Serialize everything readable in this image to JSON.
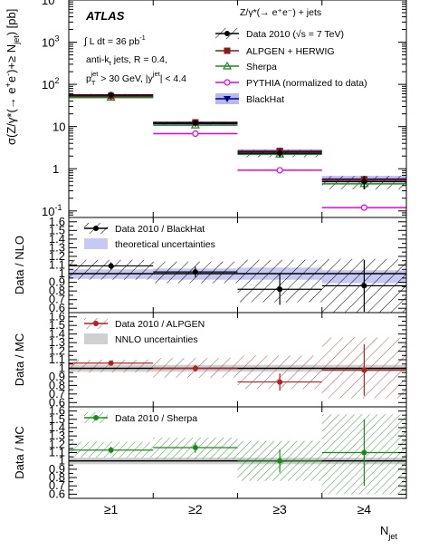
{
  "chart_data": {
    "type": "line",
    "xlabel": "N",
    "xlabel_sub": "jet",
    "categories": [
      "≥1",
      "≥2",
      "≥3",
      "≥4"
    ],
    "main": {
      "ylabel_a": "σ(Z/γ*(→ e",
      "ylabel_b": "e",
      "ylabel_c": ")+≥ N",
      "ylabel_sub": "jet",
      "ylabel_d": ") [pb]",
      "scale": "log",
      "ylim": [
        0.07,
        10000
      ],
      "yticks": [
        {
          "base": "10",
          "exp": "-1",
          "v": 0.1
        },
        {
          "base": "1",
          "exp": "",
          "v": 1
        },
        {
          "base": "10",
          "exp": "",
          "v": 10
        },
        {
          "base": "10",
          "exp": "2",
          "v": 100
        },
        {
          "base": "10",
          "exp": "3",
          "v": 1000
        },
        {
          "base": "10",
          "exp": "4",
          "v": 10000
        }
      ],
      "atlas": "ATLAS",
      "lumi_a": "∫ L dt = 36 pb",
      "lumi_exp": "-1",
      "line2": "anti-k",
      "line2_sub": "t",
      "line2_rest": " jets, R = 0.4,",
      "line3_a": "p",
      "line3_sub": "T",
      "line3_sup": "jet",
      "line3_b": " > 30 GeV, |y",
      "line3_sup2": "jet",
      "line3_c": "| < 4.4",
      "legend_title": "Z/γ*(→ e⁺e⁻) + jets",
      "series": [
        {
          "name": "Data 2010 (√s = 7 TeV)",
          "color": "#000000",
          "marker": "dot",
          "values": [
            56,
            12.2,
            2.35,
            0.5
          ],
          "err": [
            0.06,
            0.08,
            0.2,
            0.35
          ]
        },
        {
          "name": "ALPGEN + HERWIG",
          "color": "#8b1a1a",
          "marker": "square",
          "values": [
            53,
            12.6,
            2.65,
            0.55
          ]
        },
        {
          "name": "Sherpa",
          "color": "#1a8a1a",
          "marker": "triangle",
          "values": [
            49,
            10.8,
            2.2,
            0.44
          ]
        },
        {
          "name": "PYTHIA (normalized to data)",
          "color": "#e600e6",
          "marker": "circle",
          "values": [
            56,
            6.8,
            0.92,
            0.12
          ]
        },
        {
          "name": "BlackHat",
          "color": "#00008b",
          "marker": "tridown",
          "values": [
            51,
            11.8,
            2.55,
            0.57
          ],
          "band_lo": [
            46,
            10.6,
            2.2,
            0.46
          ],
          "band_hi": [
            56,
            13.0,
            2.9,
            0.68
          ]
        }
      ]
    },
    "ratios": [
      {
        "ylabel": "Data / NLO",
        "ylim": [
          0.55,
          1.65
        ],
        "yticks": [
          "0.6",
          "0.7",
          "0.8",
          "0.9",
          "1",
          "1.1",
          "1.2",
          "1.3",
          "1.4",
          "1.5",
          "1.6"
        ],
        "legend": [
          "Data 2010 / BlackHat",
          "theoretical uncertainties"
        ],
        "color": "#000000",
        "band_color": "#c8c8f5",
        "hatch_color": "#000000",
        "values": [
          1.09,
          1.02,
          0.82,
          0.86
        ],
        "err": [
          0.04,
          0.06,
          0.18,
          0.3
        ],
        "band_lo": [
          0.94,
          0.93,
          0.93,
          0.89
        ],
        "band_hi": [
          1.05,
          1.06,
          1.07,
          1.04
        ],
        "hatch_lo": [
          0.93,
          0.89,
          0.67,
          0.55
        ],
        "hatch_hi": [
          1.16,
          1.14,
          1.16,
          1.17
        ]
      },
      {
        "ylabel": "Data / MC",
        "ylim": [
          0.55,
          1.65
        ],
        "yticks": [
          "0.6",
          "0.7",
          "0.8",
          "0.9",
          "1",
          "1.1",
          "1.2",
          "1.3",
          "1.4",
          "1.5",
          "1.6"
        ],
        "legend": [
          "Data 2010 / ALPGEN",
          "NNLO uncertainties"
        ],
        "color": "#b22222",
        "band_color": "#d0d0d0",
        "hatch_color": "#c05050",
        "values": [
          1.06,
          1.0,
          0.84,
          0.98
        ],
        "err": [
          0.03,
          0.04,
          0.1,
          0.3
        ],
        "band_lo": [
          0.96,
          0.96,
          0.96,
          0.96
        ],
        "band_hi": [
          1.04,
          1.04,
          1.04,
          1.04
        ],
        "hatch_lo": [
          0.95,
          0.89,
          0.76,
          0.65
        ],
        "hatch_hi": [
          1.1,
          1.12,
          1.15,
          1.36
        ]
      },
      {
        "ylabel": "Data / MC",
        "ylim": [
          0.55,
          1.65
        ],
        "yticks": [
          "0.6",
          "0.7",
          "0.8",
          "0.9",
          "1",
          "1.1",
          "1.2",
          "1.3",
          "1.4",
          "1.5",
          "1.6"
        ],
        "legend": [
          "Data 2010 / Sherpa"
        ],
        "color": "#1a8a1a",
        "band_color": "#d0d0d0",
        "hatch_color": "#3a9a3a",
        "values": [
          1.13,
          1.16,
          1.0,
          1.1
        ],
        "err": [
          0.04,
          0.06,
          0.14,
          0.4
        ],
        "band_lo": [
          0.96,
          0.96,
          0.96,
          0.96
        ],
        "band_hi": [
          1.04,
          1.04,
          1.04,
          1.04
        ],
        "hatch_lo": [
          1.04,
          1.02,
          0.76,
          0.6
        ],
        "hatch_hi": [
          1.23,
          1.28,
          1.24,
          1.56
        ]
      }
    ]
  }
}
